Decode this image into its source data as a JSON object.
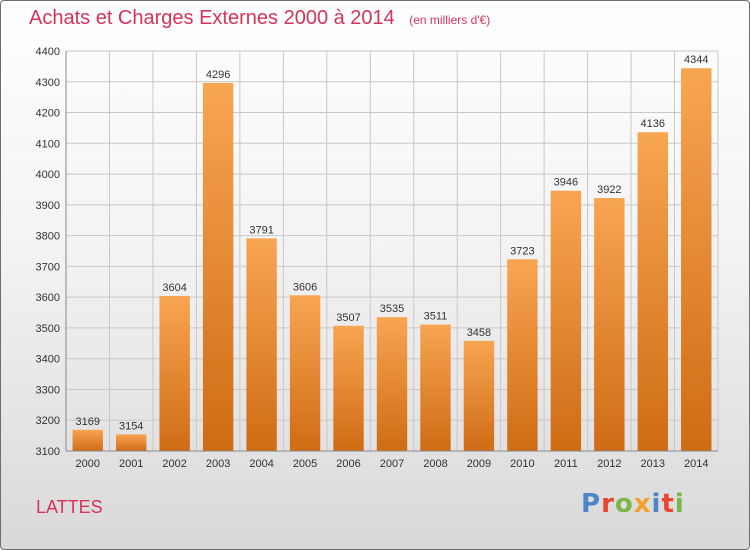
{
  "header": {
    "title": "Achats et Charges Externes 2000 à 2014",
    "subtitle": "(en milliers d'€)"
  },
  "footer": {
    "place": "LATTES",
    "logo_text": "Proxiti"
  },
  "colors": {
    "title": "#d7335a",
    "bar_top": "#f8a552",
    "bar_bottom": "#cf6c14",
    "grid": "#c8c8c8",
    "logo_letters": [
      "#4c86c6",
      "#e8452c",
      "#7ab648",
      "#f2a12b",
      "#4c86c6",
      "#e8452c",
      "#7ab648"
    ]
  },
  "chart_data": {
    "type": "bar",
    "title": "Achats et Charges Externes 2000 à 2014",
    "subtitle": "(en milliers d'€)",
    "categories": [
      "2000",
      "2001",
      "2002",
      "2003",
      "2004",
      "2005",
      "2006",
      "2007",
      "2008",
      "2009",
      "2010",
      "2011",
      "2012",
      "2013",
      "2014"
    ],
    "values": [
      3169,
      3154,
      3604,
      4296,
      3791,
      3606,
      3507,
      3535,
      3511,
      3458,
      3723,
      3946,
      3922,
      4136,
      4344
    ],
    "ylim": [
      3100,
      4400
    ],
    "yticks": [
      3100,
      3200,
      3300,
      3400,
      3500,
      3600,
      3700,
      3800,
      3900,
      4000,
      4100,
      4200,
      4300,
      4400
    ],
    "grid": true,
    "xlabel": "",
    "ylabel": ""
  }
}
